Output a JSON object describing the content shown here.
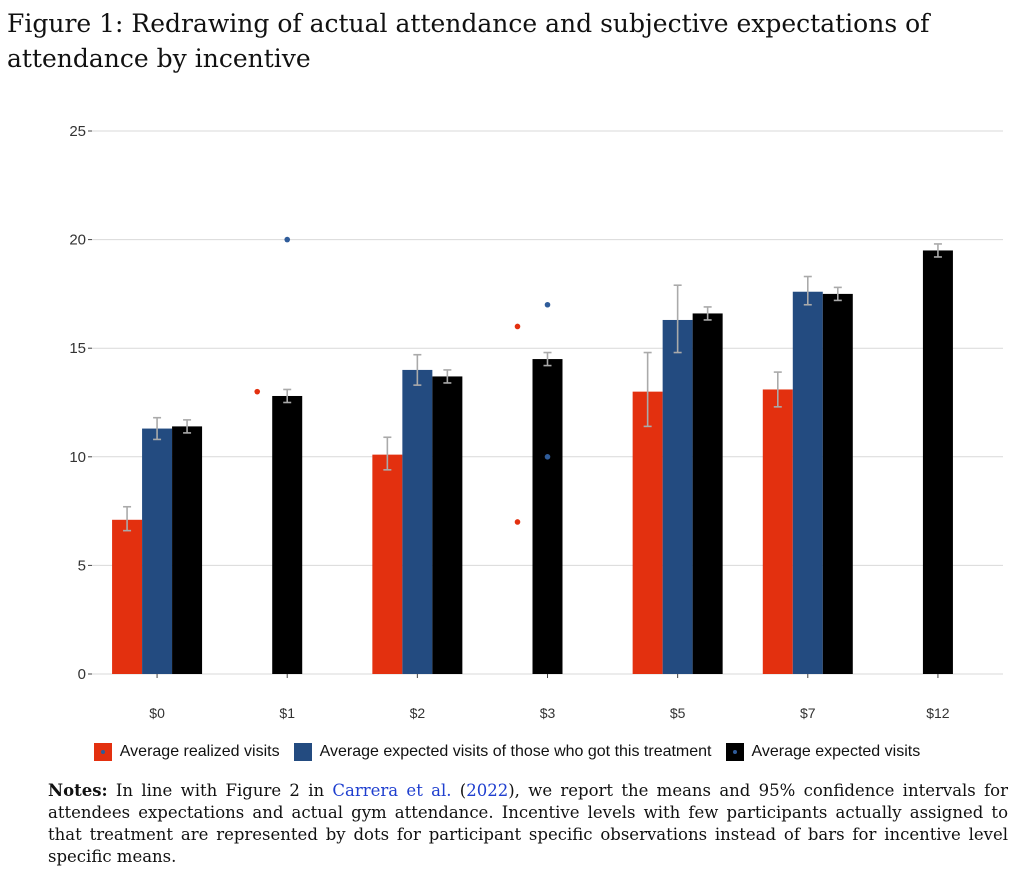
{
  "figure": {
    "caption": "Figure 1: Redrawing of actual attendance and subjective expectations of attendance by incentive"
  },
  "colors": {
    "realized": "#e3300f",
    "expected_treated": "#234b80",
    "expected_all": "#000000",
    "error_bar": "#aaaaaa",
    "grid": "#d9d9d9",
    "dot_blue": "#2f5c9a"
  },
  "chart_data": {
    "type": "bar",
    "categories": [
      "$0",
      "$1",
      "$2",
      "$3",
      "$5",
      "$7",
      "$12"
    ],
    "ylim": [
      0,
      25
    ],
    "yticks": [
      0,
      5,
      10,
      15,
      20,
      25
    ],
    "grid": true,
    "legend_position": "bottom",
    "series": [
      {
        "name": "Average realized visits",
        "key": "realized",
        "values": [
          7.1,
          null,
          10.1,
          null,
          13.0,
          13.1,
          null
        ],
        "ci_low": [
          6.6,
          null,
          9.4,
          null,
          11.4,
          12.3,
          null
        ],
        "ci_high": [
          7.7,
          null,
          10.9,
          null,
          14.8,
          13.9,
          null
        ],
        "points": [
          {
            "category": "$1",
            "y": 13
          },
          {
            "category": "$3",
            "y": 16
          },
          {
            "category": "$3",
            "y": 7
          }
        ]
      },
      {
        "name": "Average expected visits of those who got this treatment",
        "key": "expected_treated",
        "values": [
          11.3,
          null,
          14.0,
          null,
          16.3,
          17.6,
          null
        ],
        "ci_low": [
          10.8,
          null,
          13.3,
          null,
          14.8,
          17.0,
          null
        ],
        "ci_high": [
          11.8,
          null,
          14.7,
          null,
          17.9,
          18.3,
          null
        ],
        "points": [
          {
            "category": "$1",
            "y": 20
          },
          {
            "category": "$3",
            "y": 17
          },
          {
            "category": "$3",
            "y": 10
          }
        ]
      },
      {
        "name": "Average expected visits",
        "key": "expected_all",
        "values": [
          11.4,
          12.8,
          13.7,
          14.5,
          16.6,
          17.5,
          19.5
        ],
        "ci_low": [
          11.1,
          12.5,
          13.4,
          14.2,
          16.3,
          17.2,
          19.2
        ],
        "ci_high": [
          11.7,
          13.1,
          14.0,
          14.8,
          16.9,
          17.8,
          19.8
        ]
      }
    ]
  },
  "legend": {
    "items": [
      {
        "label": "Average realized visits"
      },
      {
        "label": "Average expected visits of those who got this treatment"
      },
      {
        "label": "Average expected visits"
      }
    ]
  },
  "notes": {
    "heading": "Notes:",
    "part1": " In line with Figure 2 in ",
    "citation": "Carrera et al.",
    "paren_open": " (",
    "year": "2022",
    "part2": "), we report the means and 95% confidence intervals for attendees expectations and actual gym attendance. Incentive levels with few participants actually assigned to that treatment are represented by dots for participant specific observations instead of bars for incentive level specific means."
  }
}
